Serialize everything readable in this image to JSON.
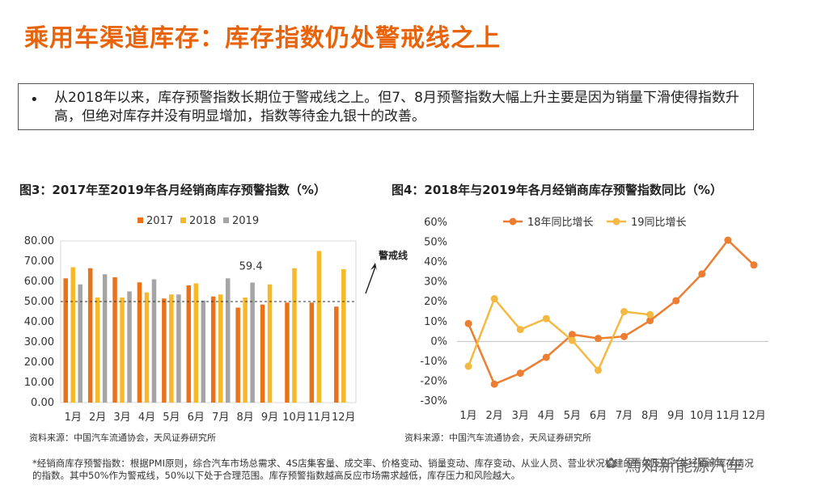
{
  "page_title": "乘用车渠道库存：库存指数仍处警戒线之上",
  "bullet": "从2018年以来，库存预警指数长期位于警戒线之上。但7、8月预警指数大幅上升主要是因为销量下滑使得指数升高，但绝对库存并没有明显增加，指数等待金九银十的改善。",
  "bullet_symbol": "•",
  "fig3_title": "图3：2017年至2019年各月经销商库存预警指数（%）",
  "fig4_title": "图4：2018年与2019年各月经销商库存预警指数同比（%）",
  "source_left": "资料来源：中国汽车流通协会，天风证券研究所",
  "source_right": "资料来源：中国汽车流通协会，天风证券研究所",
  "footnote": "*经销商库存预警指数：根据PMI原则，综合汽车市场总需求、4S店集客量、成交率、价格变动、销量变动、库存变动、从业人员、营业状况构建的有效反应汽车经销商库存情况的指数。其中50%作为警戒线，50%以下处于合理范围。库存预警指数越高反应市场需求越低，库存压力和风险越大。",
  "watermark": "焉知新能源汽车",
  "colors": {
    "title": "#E8630A",
    "s2017": "#E8731A",
    "s2018": "#F6B92A",
    "s2019": "#A5A5A5",
    "line18": "#ED7D31",
    "line19": "#F4B942"
  },
  "chart_data": [
    {
      "type": "bar",
      "categories": [
        "1月",
        "2月",
        "3月",
        "4月",
        "5月",
        "6月",
        "7月",
        "8月",
        "9月",
        "10月",
        "11月",
        "12月"
      ],
      "series": [
        {
          "name": "2017",
          "values": [
            61.5,
            66.5,
            62.0,
            59.5,
            51.5,
            58.0,
            52.5,
            47.0,
            48.5,
            49.5,
            49.5,
            47.5
          ]
        },
        {
          "name": "2018",
          "values": [
            67.0,
            52.0,
            52.0,
            54.5,
            53.5,
            59.0,
            53.5,
            52.0,
            58.5,
            66.5,
            75.0,
            66.0
          ]
        },
        {
          "name": "2019",
          "values": [
            58.5,
            63.5,
            55.0,
            61.0,
            53.5,
            50.5,
            61.5,
            59.4,
            null,
            null,
            null,
            null
          ]
        }
      ],
      "ylim": [
        0,
        80
      ],
      "yticks": [
        "0.00",
        "10.00",
        "20.00",
        "30.00",
        "40.00",
        "50.00",
        "60.00",
        "70.00",
        "80.00"
      ],
      "threshold": 50,
      "annotation_value": "59.4",
      "annotation_label": "警戒线",
      "legend": "top"
    },
    {
      "type": "line",
      "categories": [
        "1月",
        "2月",
        "3月",
        "4月",
        "5月",
        "6月",
        "7月",
        "8月",
        "9月",
        "10月",
        "11月",
        "12月"
      ],
      "series": [
        {
          "name": "18年同比增长",
          "values": [
            9,
            -21.5,
            -16,
            -8,
            3.5,
            1.5,
            2.5,
            10.5,
            20.5,
            34,
            51,
            38.5
          ]
        },
        {
          "name": "19同比增长",
          "values": [
            -12.5,
            21.5,
            6,
            11.5,
            0.5,
            -14.5,
            15,
            13.5,
            null,
            null,
            null,
            null
          ]
        }
      ],
      "ylim": [
        -30,
        60
      ],
      "yticks": [
        "-30%",
        "-20%",
        "-10%",
        "0%",
        "10%",
        "20%",
        "30%",
        "40%",
        "50%",
        "60%"
      ],
      "legend": "top"
    }
  ]
}
